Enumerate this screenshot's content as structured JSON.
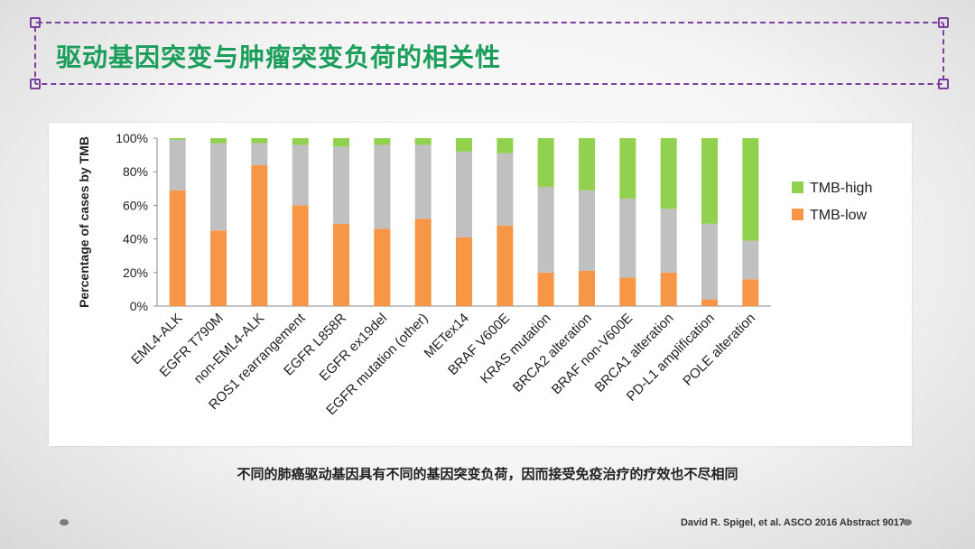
{
  "slide": {
    "title": "驱动基因突变与肿瘤突变负荷的相关性",
    "caption": "不同的肺癌驱动基因具有不同的基因突变负荷，因而接受免疫治疗的疗效也不尽相同",
    "citation": "David R. Spigel, et al. ASCO 2016 Abstract 9017"
  },
  "chart_data": {
    "type": "bar",
    "stacked": true,
    "percent": true,
    "ylabel": "Percentage of cases by TMB",
    "ylim": [
      0,
      100
    ],
    "yticks": [
      "0%",
      "20%",
      "40%",
      "60%",
      "80%",
      "100%"
    ],
    "categories": [
      "EML4-ALK",
      "EGFR T790M",
      "non-EML4-ALK",
      "ROS1 rearrangement",
      "EGFR L858R",
      "EGFR ex19del",
      "EGFR mutation (other)",
      "METex14",
      "BRAF V600E",
      "KRAS mutation",
      "BRCA2 alteration",
      "BRAF non-V600E",
      "BRCA1 alteration",
      "PD-L1 amplification",
      "POLE alteration"
    ],
    "series": [
      {
        "name": "TMB-low",
        "color": "#f79646",
        "values": [
          69,
          45,
          84,
          60,
          49,
          46,
          52,
          41,
          48,
          20,
          21,
          17,
          20,
          4,
          16
        ]
      },
      {
        "name": "",
        "color": "#c0c0c0",
        "values": [
          30,
          52,
          13,
          36,
          46,
          50,
          44,
          51,
          43,
          51,
          48,
          47,
          38,
          45,
          23
        ]
      },
      {
        "name": "TMB-high",
        "color": "#92d050",
        "values": [
          1,
          3,
          3,
          4,
          5,
          4,
          4,
          8,
          9,
          29,
          31,
          36,
          42,
          51,
          61
        ]
      }
    ],
    "legend": [
      "TMB-high",
      "TMB-low"
    ],
    "legend_position": "right",
    "grid": false
  }
}
